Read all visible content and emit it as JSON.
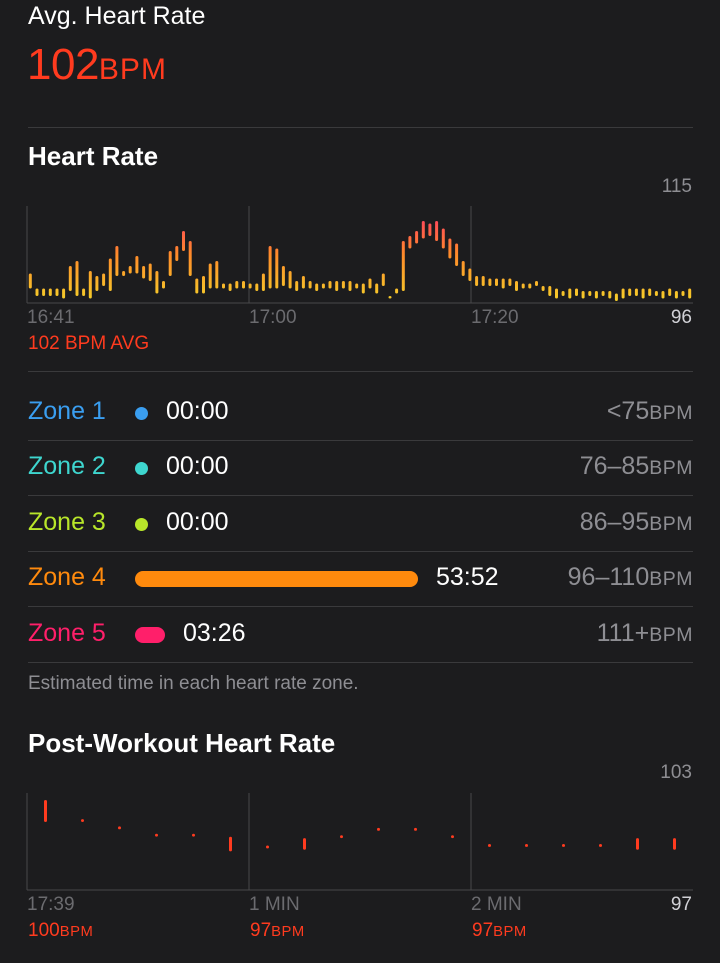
{
  "summary": {
    "title": "Avg. Heart Rate",
    "value": "102",
    "unit": "BPM",
    "accent_color": "#ff3b1f"
  },
  "heart_rate_chart": {
    "title": "Heart Rate",
    "y_max_label": "115",
    "y_min_label": "96",
    "x_labels": [
      "16:41",
      "17:00",
      "17:20"
    ],
    "avg_label": "102 BPM AVG"
  },
  "zones": {
    "rows": [
      {
        "name": "Zone 1",
        "time": "00:00",
        "range": "<75",
        "unit": "BPM",
        "color": "#3a9ef0"
      },
      {
        "name": "Zone 2",
        "time": "00:00",
        "range": "76–85",
        "unit": "BPM",
        "color": "#3ed6cf"
      },
      {
        "name": "Zone 3",
        "time": "00:00",
        "range": "86–95",
        "unit": "BPM",
        "color": "#b8e62a"
      },
      {
        "name": "Zone 4",
        "time": "53:52",
        "range": "96–110",
        "unit": "BPM",
        "color": "#ff8a0d"
      },
      {
        "name": "Zone 5",
        "time": "03:26",
        "range": "111+",
        "unit": "BPM",
        "color": "#ff1f6a"
      }
    ],
    "caption": "Estimated time in each heart rate zone."
  },
  "post_workout_chart": {
    "title": "Post-Workout Heart Rate",
    "y_max_label": "103",
    "y_min_label": "97",
    "x_labels": [
      "17:39",
      "1 MIN",
      "2 MIN"
    ],
    "readings": [
      {
        "value": "100",
        "unit": "BPM"
      },
      {
        "value": "97",
        "unit": "BPM"
      },
      {
        "value": "97",
        "unit": "BPM"
      }
    ],
    "color": "#ff3b1f"
  },
  "chart_data": [
    {
      "type": "bar",
      "title": "Heart Rate",
      "ylim": [
        96,
        115
      ],
      "x_ticks": [
        "16:41",
        "17:00",
        "17:20"
      ],
      "series": [
        {
          "values": [
            [
              98.5,
              101.5
            ],
            [
              97,
              98.5
            ],
            [
              97,
              98.5
            ],
            [
              97,
              98.5
            ],
            [
              97,
              98.5
            ],
            [
              96.5,
              98.5
            ],
            [
              98,
              103
            ],
            [
              97,
              104
            ],
            [
              97,
              98.5
            ],
            [
              96.5,
              102
            ],
            [
              98,
              101
            ],
            [
              99,
              101.5
            ],
            [
              98,
              104.5
            ],
            [
              101,
              107
            ],
            [
              101,
              102
            ],
            [
              101.5,
              103
            ],
            [
              101.5,
              105
            ],
            [
              100.5,
              103
            ],
            [
              100,
              103.5
            ],
            [
              97.5,
              102
            ],
            [
              98.5,
              100
            ],
            [
              101,
              106
            ],
            [
              104,
              107
            ],
            [
              106,
              110
            ],
            [
              101,
              108
            ],
            [
              97.5,
              100.5
            ],
            [
              97.5,
              101
            ],
            [
              98.5,
              103.5
            ],
            [
              98.5,
              104
            ],
            [
              98.5,
              99.5
            ],
            [
              98,
              99.5
            ],
            [
              98.5,
              100
            ],
            [
              98.5,
              100
            ],
            [
              98.5,
              99.5
            ],
            [
              98,
              99.5
            ],
            [
              98,
              101.5
            ],
            [
              98.5,
              107
            ],
            [
              98.5,
              106.5
            ],
            [
              99,
              103
            ],
            [
              98.5,
              102
            ],
            [
              98,
              100
            ],
            [
              98.5,
              101
            ],
            [
              98.5,
              100
            ],
            [
              98,
              99.5
            ],
            [
              98.5,
              99.5
            ],
            [
              98.5,
              100
            ],
            [
              98,
              100
            ],
            [
              98.5,
              100
            ],
            [
              98,
              100
            ],
            [
              98.5,
              99.5
            ],
            [
              97.5,
              99.5
            ],
            [
              98.5,
              100.5
            ],
            [
              97.5,
              99.5
            ],
            [
              99,
              101.5
            ],
            [
              96.5,
              97
            ],
            [
              97.5,
              98.5
            ],
            [
              98,
              108
            ],
            [
              106.5,
              109
            ],
            [
              107.5,
              110
            ],
            [
              108.5,
              112
            ],
            [
              109,
              111.5
            ],
            [
              108,
              112
            ],
            [
              106.5,
              110.5
            ],
            [
              104.5,
              108.5
            ],
            [
              103,
              107.5
            ],
            [
              101,
              104
            ],
            [
              100,
              102.5
            ],
            [
              99,
              101
            ],
            [
              99,
              101
            ],
            [
              99,
              100.5
            ],
            [
              99,
              100.5
            ],
            [
              98.5,
              100.5
            ],
            [
              99,
              100.5
            ],
            [
              98,
              100
            ],
            [
              98.5,
              99.5
            ],
            [
              98.5,
              99.5
            ],
            [
              99,
              100
            ],
            [
              98,
              99
            ],
            [
              97,
              99
            ],
            [
              96.5,
              98.5
            ],
            [
              97,
              98
            ],
            [
              96.5,
              98.5
            ],
            [
              97,
              98.5
            ],
            [
              96.5,
              98
            ],
            [
              97,
              98
            ],
            [
              96.5,
              98
            ],
            [
              97,
              98
            ],
            [
              96.5,
              98
            ],
            [
              96,
              97.5
            ],
            [
              96.5,
              98.5
            ],
            [
              97,
              98.5
            ],
            [
              97,
              98.5
            ],
            [
              96.5,
              98.5
            ],
            [
              97,
              98.5
            ],
            [
              97,
              98
            ],
            [
              96.5,
              98
            ],
            [
              97,
              98.5
            ],
            [
              96.5,
              98
            ],
            [
              97,
              98
            ],
            [
              96.5,
              98.5
            ]
          ]
        }
      ]
    },
    {
      "type": "bar",
      "title": "Post-Workout Heart Rate",
      "ylim": [
        97,
        103
      ],
      "x_ticks": [
        "17:39",
        "1 MIN",
        "2 MIN"
      ],
      "series": [
        {
          "values": [
            [
              101.5,
              103
            ],
            [
              101.5,
              101.7
            ],
            [
              101,
              101.2
            ],
            [
              100.5,
              100.7
            ],
            [
              100.5,
              100.7
            ],
            [
              99.5,
              100.5
            ],
            [
              99.7,
              99.9
            ],
            [
              99.6,
              100.4
            ],
            [
              100.4,
              100.6
            ],
            [
              100.9,
              101.1
            ],
            [
              100.9,
              101.1
            ],
            [
              100.4,
              100.6
            ],
            [
              99.8,
              100
            ],
            [
              99.8,
              100
            ],
            [
              99.8,
              100
            ],
            [
              99.8,
              100
            ],
            [
              99.6,
              100.4
            ],
            [
              99.6,
              100.4
            ]
          ]
        }
      ]
    }
  ]
}
